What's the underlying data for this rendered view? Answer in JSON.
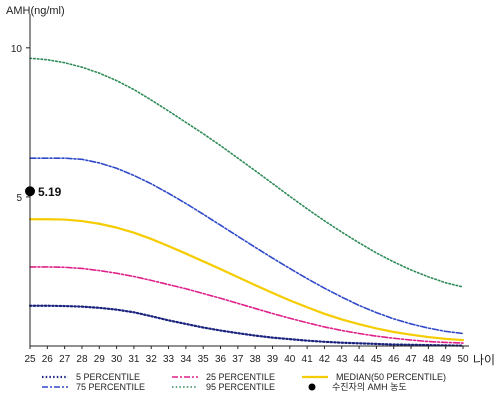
{
  "chart_data": {
    "type": "line",
    "ylabel": "AMH(ng/ml)",
    "xlabel": "나이",
    "xlim": [
      25,
      50
    ],
    "ylim": [
      0,
      11
    ],
    "yticks": [
      5,
      10
    ],
    "x": [
      25,
      26,
      27,
      28,
      29,
      30,
      31,
      32,
      33,
      34,
      35,
      36,
      37,
      38,
      39,
      40,
      41,
      42,
      43,
      44,
      45,
      46,
      47,
      48,
      49,
      50
    ],
    "grid": false,
    "legend_position": "bottom",
    "series": [
      {
        "name": "5 PERCENTILE",
        "color": "#1a237e",
        "dash": "1.5,2.2",
        "width": 2.2,
        "values": [
          1.35,
          1.35,
          1.34,
          1.32,
          1.28,
          1.22,
          1.13,
          1.0,
          0.86,
          0.74,
          0.62,
          0.52,
          0.43,
          0.35,
          0.28,
          0.23,
          0.18,
          0.14,
          0.11,
          0.09,
          0.07,
          0.05,
          0.04,
          0.03,
          0.02,
          0.01
        ]
      },
      {
        "name": "25 PERCENTILE",
        "color": "#e0218a",
        "dash": "6,2,2,2",
        "width": 1.6,
        "values": [
          2.65,
          2.65,
          2.64,
          2.6,
          2.53,
          2.44,
          2.33,
          2.2,
          2.06,
          1.92,
          1.76,
          1.6,
          1.43,
          1.26,
          1.09,
          0.93,
          0.78,
          0.64,
          0.52,
          0.42,
          0.33,
          0.26,
          0.2,
          0.15,
          0.12,
          0.1
        ]
      },
      {
        "name": "MEDIAN(50 PERCENTILE)",
        "color": "#f5cc00",
        "dash": "",
        "width": 2.2,
        "values": [
          4.25,
          4.25,
          4.24,
          4.19,
          4.1,
          3.97,
          3.8,
          3.59,
          3.35,
          3.1,
          2.84,
          2.58,
          2.31,
          2.04,
          1.78,
          1.53,
          1.3,
          1.08,
          0.89,
          0.73,
          0.59,
          0.47,
          0.38,
          0.3,
          0.24,
          0.2
        ]
      },
      {
        "name": "75 PERCENTILE",
        "color": "#3049c8",
        "dash": "6,2,2,2",
        "width": 1.6,
        "values": [
          6.3,
          6.3,
          6.3,
          6.26,
          6.14,
          5.96,
          5.72,
          5.44,
          5.12,
          4.78,
          4.42,
          4.05,
          3.68,
          3.31,
          2.95,
          2.6,
          2.26,
          1.94,
          1.64,
          1.36,
          1.12,
          0.91,
          0.74,
          0.6,
          0.49,
          0.42
        ]
      },
      {
        "name": "95 PERCENTILE",
        "color": "#2e8b57",
        "dash": "1.5,2.2",
        "width": 1.6,
        "values": [
          9.65,
          9.6,
          9.5,
          9.35,
          9.15,
          8.9,
          8.6,
          8.25,
          7.88,
          7.5,
          7.12,
          6.72,
          6.3,
          5.88,
          5.45,
          5.02,
          4.6,
          4.2,
          3.82,
          3.46,
          3.12,
          2.82,
          2.55,
          2.32,
          2.12,
          1.98
        ]
      }
    ],
    "marker": {
      "name": "수진자의 AMH 농도",
      "x": 25,
      "y": 5.19,
      "label": "5.19",
      "color": "#000000"
    }
  }
}
